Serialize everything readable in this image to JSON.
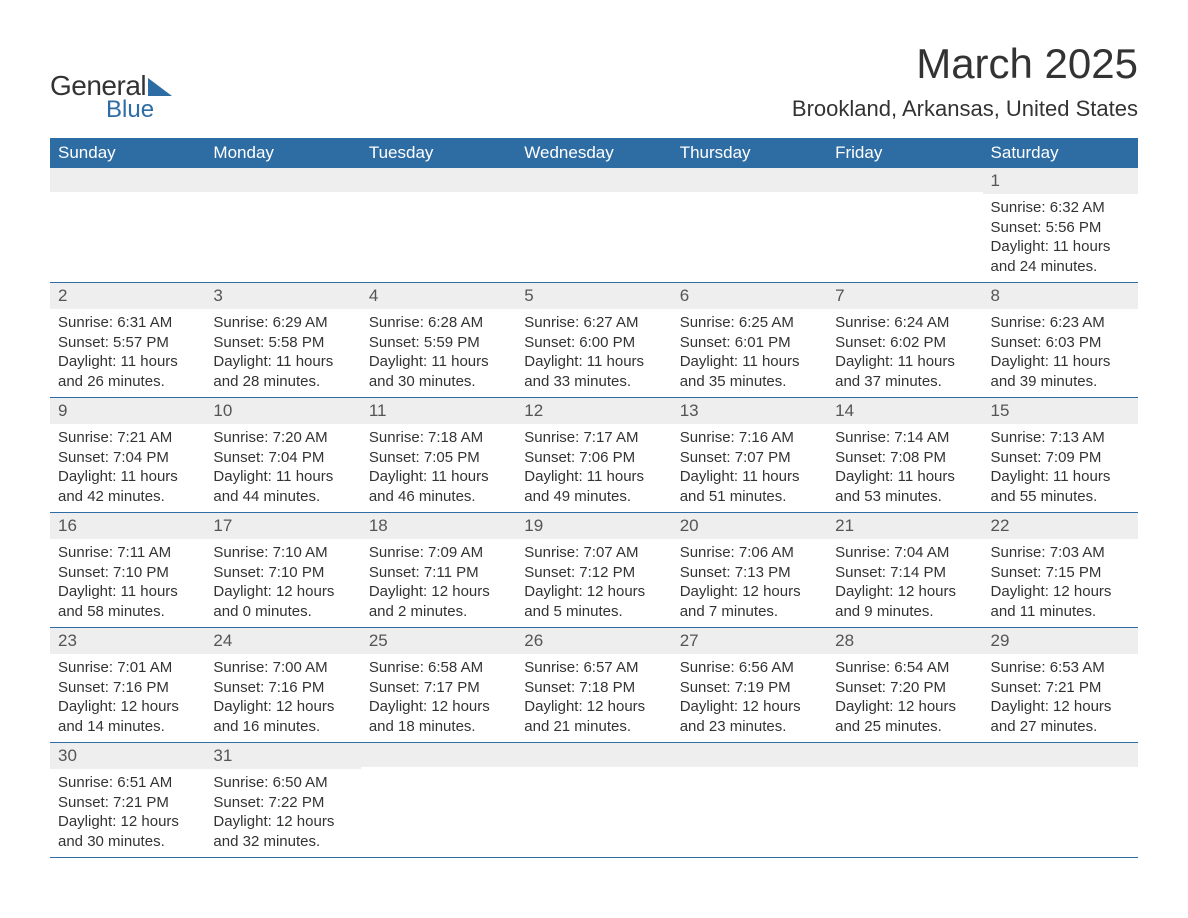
{
  "logo": {
    "word1": "General",
    "word2": "Blue"
  },
  "title": "March 2025",
  "location": "Brookland, Arkansas, United States",
  "colors": {
    "header_bg": "#2e6ca4",
    "header_text": "#ffffff",
    "daynum_bg": "#eeeeee",
    "row_border": "#2e6ca4",
    "text": "#333333"
  },
  "weekdays": [
    "Sunday",
    "Monday",
    "Tuesday",
    "Wednesday",
    "Thursday",
    "Friday",
    "Saturday"
  ],
  "weeks": [
    [
      {
        "day": "",
        "sunrise": "",
        "sunset": "",
        "daylight": ""
      },
      {
        "day": "",
        "sunrise": "",
        "sunset": "",
        "daylight": ""
      },
      {
        "day": "",
        "sunrise": "",
        "sunset": "",
        "daylight": ""
      },
      {
        "day": "",
        "sunrise": "",
        "sunset": "",
        "daylight": ""
      },
      {
        "day": "",
        "sunrise": "",
        "sunset": "",
        "daylight": ""
      },
      {
        "day": "",
        "sunrise": "",
        "sunset": "",
        "daylight": ""
      },
      {
        "day": "1",
        "sunrise": "Sunrise: 6:32 AM",
        "sunset": "Sunset: 5:56 PM",
        "daylight": "Daylight: 11 hours and 24 minutes."
      }
    ],
    [
      {
        "day": "2",
        "sunrise": "Sunrise: 6:31 AM",
        "sunset": "Sunset: 5:57 PM",
        "daylight": "Daylight: 11 hours and 26 minutes."
      },
      {
        "day": "3",
        "sunrise": "Sunrise: 6:29 AM",
        "sunset": "Sunset: 5:58 PM",
        "daylight": "Daylight: 11 hours and 28 minutes."
      },
      {
        "day": "4",
        "sunrise": "Sunrise: 6:28 AM",
        "sunset": "Sunset: 5:59 PM",
        "daylight": "Daylight: 11 hours and 30 minutes."
      },
      {
        "day": "5",
        "sunrise": "Sunrise: 6:27 AM",
        "sunset": "Sunset: 6:00 PM",
        "daylight": "Daylight: 11 hours and 33 minutes."
      },
      {
        "day": "6",
        "sunrise": "Sunrise: 6:25 AM",
        "sunset": "Sunset: 6:01 PM",
        "daylight": "Daylight: 11 hours and 35 minutes."
      },
      {
        "day": "7",
        "sunrise": "Sunrise: 6:24 AM",
        "sunset": "Sunset: 6:02 PM",
        "daylight": "Daylight: 11 hours and 37 minutes."
      },
      {
        "day": "8",
        "sunrise": "Sunrise: 6:23 AM",
        "sunset": "Sunset: 6:03 PM",
        "daylight": "Daylight: 11 hours and 39 minutes."
      }
    ],
    [
      {
        "day": "9",
        "sunrise": "Sunrise: 7:21 AM",
        "sunset": "Sunset: 7:04 PM",
        "daylight": "Daylight: 11 hours and 42 minutes."
      },
      {
        "day": "10",
        "sunrise": "Sunrise: 7:20 AM",
        "sunset": "Sunset: 7:04 PM",
        "daylight": "Daylight: 11 hours and 44 minutes."
      },
      {
        "day": "11",
        "sunrise": "Sunrise: 7:18 AM",
        "sunset": "Sunset: 7:05 PM",
        "daylight": "Daylight: 11 hours and 46 minutes."
      },
      {
        "day": "12",
        "sunrise": "Sunrise: 7:17 AM",
        "sunset": "Sunset: 7:06 PM",
        "daylight": "Daylight: 11 hours and 49 minutes."
      },
      {
        "day": "13",
        "sunrise": "Sunrise: 7:16 AM",
        "sunset": "Sunset: 7:07 PM",
        "daylight": "Daylight: 11 hours and 51 minutes."
      },
      {
        "day": "14",
        "sunrise": "Sunrise: 7:14 AM",
        "sunset": "Sunset: 7:08 PM",
        "daylight": "Daylight: 11 hours and 53 minutes."
      },
      {
        "day": "15",
        "sunrise": "Sunrise: 7:13 AM",
        "sunset": "Sunset: 7:09 PM",
        "daylight": "Daylight: 11 hours and 55 minutes."
      }
    ],
    [
      {
        "day": "16",
        "sunrise": "Sunrise: 7:11 AM",
        "sunset": "Sunset: 7:10 PM",
        "daylight": "Daylight: 11 hours and 58 minutes."
      },
      {
        "day": "17",
        "sunrise": "Sunrise: 7:10 AM",
        "sunset": "Sunset: 7:10 PM",
        "daylight": "Daylight: 12 hours and 0 minutes."
      },
      {
        "day": "18",
        "sunrise": "Sunrise: 7:09 AM",
        "sunset": "Sunset: 7:11 PM",
        "daylight": "Daylight: 12 hours and 2 minutes."
      },
      {
        "day": "19",
        "sunrise": "Sunrise: 7:07 AM",
        "sunset": "Sunset: 7:12 PM",
        "daylight": "Daylight: 12 hours and 5 minutes."
      },
      {
        "day": "20",
        "sunrise": "Sunrise: 7:06 AM",
        "sunset": "Sunset: 7:13 PM",
        "daylight": "Daylight: 12 hours and 7 minutes."
      },
      {
        "day": "21",
        "sunrise": "Sunrise: 7:04 AM",
        "sunset": "Sunset: 7:14 PM",
        "daylight": "Daylight: 12 hours and 9 minutes."
      },
      {
        "day": "22",
        "sunrise": "Sunrise: 7:03 AM",
        "sunset": "Sunset: 7:15 PM",
        "daylight": "Daylight: 12 hours and 11 minutes."
      }
    ],
    [
      {
        "day": "23",
        "sunrise": "Sunrise: 7:01 AM",
        "sunset": "Sunset: 7:16 PM",
        "daylight": "Daylight: 12 hours and 14 minutes."
      },
      {
        "day": "24",
        "sunrise": "Sunrise: 7:00 AM",
        "sunset": "Sunset: 7:16 PM",
        "daylight": "Daylight: 12 hours and 16 minutes."
      },
      {
        "day": "25",
        "sunrise": "Sunrise: 6:58 AM",
        "sunset": "Sunset: 7:17 PM",
        "daylight": "Daylight: 12 hours and 18 minutes."
      },
      {
        "day": "26",
        "sunrise": "Sunrise: 6:57 AM",
        "sunset": "Sunset: 7:18 PM",
        "daylight": "Daylight: 12 hours and 21 minutes."
      },
      {
        "day": "27",
        "sunrise": "Sunrise: 6:56 AM",
        "sunset": "Sunset: 7:19 PM",
        "daylight": "Daylight: 12 hours and 23 minutes."
      },
      {
        "day": "28",
        "sunrise": "Sunrise: 6:54 AM",
        "sunset": "Sunset: 7:20 PM",
        "daylight": "Daylight: 12 hours and 25 minutes."
      },
      {
        "day": "29",
        "sunrise": "Sunrise: 6:53 AM",
        "sunset": "Sunset: 7:21 PM",
        "daylight": "Daylight: 12 hours and 27 minutes."
      }
    ],
    [
      {
        "day": "30",
        "sunrise": "Sunrise: 6:51 AM",
        "sunset": "Sunset: 7:21 PM",
        "daylight": "Daylight: 12 hours and 30 minutes."
      },
      {
        "day": "31",
        "sunrise": "Sunrise: 6:50 AM",
        "sunset": "Sunset: 7:22 PM",
        "daylight": "Daylight: 12 hours and 32 minutes."
      },
      {
        "day": "",
        "sunrise": "",
        "sunset": "",
        "daylight": ""
      },
      {
        "day": "",
        "sunrise": "",
        "sunset": "",
        "daylight": ""
      },
      {
        "day": "",
        "sunrise": "",
        "sunset": "",
        "daylight": ""
      },
      {
        "day": "",
        "sunrise": "",
        "sunset": "",
        "daylight": ""
      },
      {
        "day": "",
        "sunrise": "",
        "sunset": "",
        "daylight": ""
      }
    ]
  ]
}
